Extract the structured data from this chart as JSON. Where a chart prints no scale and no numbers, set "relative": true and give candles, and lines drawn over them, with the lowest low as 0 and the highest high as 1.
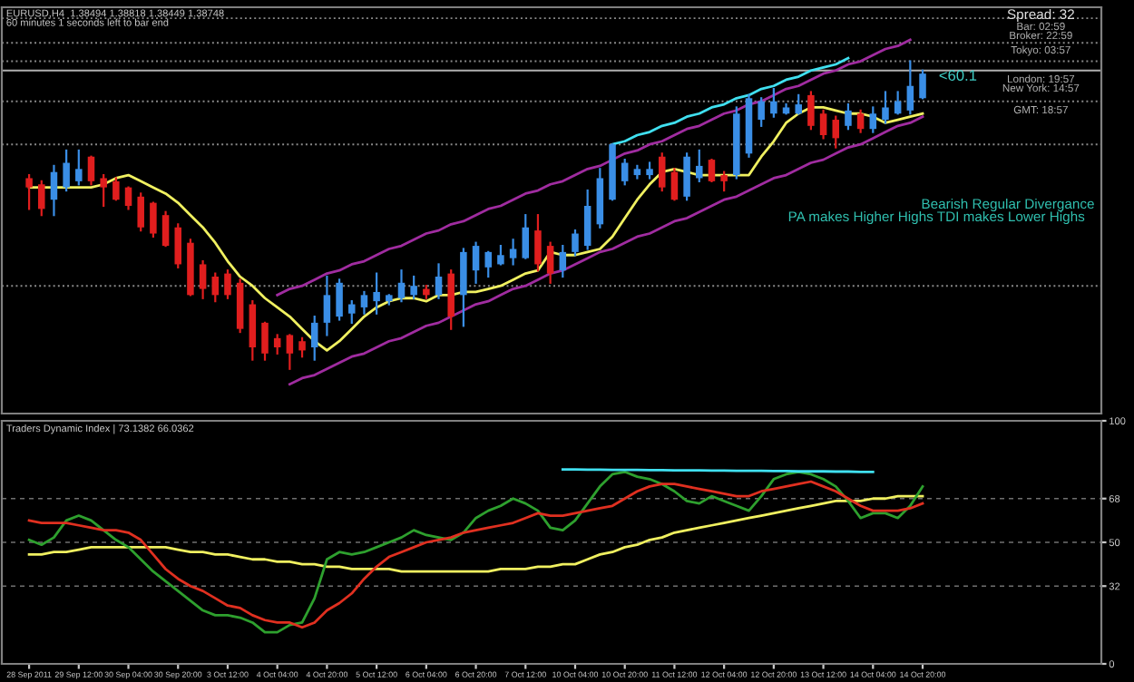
{
  "chart_data": [
    {
      "type": "candlestick",
      "relative": true,
      "title": "EURUSD,H4  1.38494 1.38818 1.38449 1.38748",
      "subtitle": "60 minutes 1 seconds left to bar end",
      "categories": [
        null,
        null,
        null,
        null,
        null,
        null,
        null,
        null,
        null,
        null,
        null,
        null,
        null,
        null,
        null,
        null,
        null,
        null,
        null,
        null,
        null,
        null,
        null,
        null,
        null,
        null,
        null,
        null,
        null,
        null,
        null,
        null,
        null,
        null,
        null,
        null,
        null,
        null,
        null,
        null,
        null,
        null,
        null,
        null,
        null,
        null,
        null,
        null,
        null,
        null,
        null,
        null,
        null,
        null,
        null,
        null,
        null,
        null,
        null,
        null,
        null,
        null,
        null,
        null,
        null,
        null,
        null,
        null,
        null,
        null,
        null,
        null,
        null
      ],
      "ohlc": [
        [
          0.62,
          0.63,
          0.52,
          0.59
        ],
        [
          0.6,
          0.61,
          0.5,
          0.52
        ],
        [
          0.55,
          0.66,
          0.5,
          0.64
        ],
        [
          0.59,
          0.71,
          0.58,
          0.67
        ],
        [
          0.61,
          0.71,
          0.6,
          0.65
        ],
        [
          0.69,
          0.69,
          0.6,
          0.61
        ],
        [
          0.62,
          0.63,
          0.53,
          0.59
        ],
        [
          0.61,
          0.62,
          0.55,
          0.55
        ],
        [
          0.59,
          0.59,
          0.52,
          0.53
        ],
        [
          0.56,
          0.57,
          0.45,
          0.46
        ],
        [
          0.54,
          0.54,
          0.43,
          0.44
        ],
        [
          0.5,
          0.51,
          0.4,
          0.4
        ],
        [
          0.46,
          0.47,
          0.33,
          0.34
        ],
        [
          0.41,
          0.42,
          0.24,
          0.24
        ],
        [
          0.34,
          0.35,
          0.23,
          0.26
        ],
        [
          0.3,
          0.31,
          0.22,
          0.24
        ],
        [
          0.31,
          0.32,
          0.23,
          0.24
        ],
        [
          0.28,
          0.29,
          0.12,
          0.13
        ],
        [
          0.21,
          0.22,
          0.03,
          0.07
        ],
        [
          0.15,
          0.15,
          0.03,
          0.05
        ],
        [
          0.1,
          0.11,
          0.05,
          0.07
        ],
        [
          0.11,
          0.11,
          0,
          0.05
        ],
        [
          0.09,
          0.1,
          0.04,
          0.06
        ],
        [
          0.07,
          0.17,
          0.03,
          0.15
        ],
        [
          0.15,
          0.3,
          0.11,
          0.24
        ],
        [
          0.17,
          0.29,
          0.16,
          0.28
        ],
        [
          0.18,
          0.22,
          0.15,
          0.21
        ],
        [
          0.2,
          0.25,
          0.18,
          0.24
        ],
        [
          0.22,
          0.31,
          0.18,
          0.25
        ],
        [
          0.22,
          0.24,
          0.21,
          0.24
        ],
        [
          0.23,
          0.32,
          0.22,
          0.28
        ],
        [
          0.24,
          0.3,
          0.23,
          0.27
        ],
        [
          0.26,
          0.27,
          0.23,
          0.24
        ],
        [
          0.24,
          0.34,
          0.23,
          0.3
        ],
        [
          0.31,
          0.32,
          0.13,
          0.17
        ],
        [
          0.24,
          0.39,
          0.14,
          0.38
        ],
        [
          0.32,
          0.41,
          0.28,
          0.4
        ],
        [
          0.33,
          0.38,
          0.3,
          0.38
        ],
        [
          0.34,
          0.4,
          0.34,
          0.37
        ],
        [
          0.36,
          0.42,
          0.34,
          0.39
        ],
        [
          0.36,
          0.5,
          0.36,
          0.46
        ],
        [
          0.45,
          0.5,
          0.32,
          0.34
        ],
        [
          0.4,
          0.41,
          0.28,
          0.31
        ],
        [
          0.32,
          0.4,
          0.3,
          0.38
        ],
        [
          0.38,
          0.45,
          0.37,
          0.44
        ],
        [
          0.4,
          0.58,
          0.39,
          0.53
        ],
        [
          0.47,
          0.65,
          0.46,
          0.62
        ],
        [
          0.55,
          0.73,
          0.55,
          0.73
        ],
        [
          0.61,
          0.68,
          0.6,
          0.67
        ],
        [
          0.63,
          0.66,
          0.62,
          0.65
        ],
        [
          0.63,
          0.67,
          0.62,
          0.65
        ],
        [
          0.69,
          0.7,
          0.58,
          0.59
        ],
        [
          0.64,
          0.65,
          0.55,
          0.55
        ],
        [
          0.56,
          0.7,
          0.55,
          0.69
        ],
        [
          0.62,
          0.71,
          0.61,
          0.66
        ],
        [
          0.68,
          0.68,
          0.61,
          0.61
        ],
        [
          0.63,
          0.64,
          0.58,
          0.61
        ],
        [
          0.63,
          0.85,
          0.62,
          0.83
        ],
        [
          0.7,
          0.89,
          0.69,
          0.88
        ],
        [
          0.81,
          0.88,
          0.79,
          0.87
        ],
        [
          0.83,
          0.91,
          0.82,
          0.87
        ],
        [
          0.83,
          0.86,
          0.83,
          0.85
        ],
        [
          0.83,
          0.89,
          0.83,
          0.86
        ],
        [
          0.89,
          0.9,
          0.78,
          0.79
        ],
        [
          0.83,
          0.84,
          0.75,
          0.76
        ],
        [
          0.81,
          0.82,
          0.72,
          0.75
        ],
        [
          0.79,
          0.86,
          0.78,
          0.84
        ],
        [
          0.83,
          0.84,
          0.77,
          0.78
        ],
        [
          0.78,
          0.85,
          0.77,
          0.83
        ],
        [
          0.81,
          0.9,
          0.8,
          0.85
        ],
        [
          0.83,
          0.9,
          0.83,
          0.87
        ],
        [
          0.84,
          1.0,
          0.83,
          0.92
        ],
        [
          0.88,
          0.97,
          0.88,
          0.96
        ]
      ],
      "colors": [
        "#e01e1e",
        "#e01e1e",
        "#3a8ee6",
        "#3a8ee6",
        "#3a8ee6",
        "#e01e1e",
        "#e01e1e",
        "#e01e1e",
        "#e01e1e",
        "#e01e1e",
        "#e01e1e",
        "#e01e1e",
        "#e01e1e",
        "#e01e1e",
        "#e01e1e",
        "#e01e1e",
        "#e01e1e",
        "#e01e1e",
        "#e01e1e",
        "#e01e1e",
        "#e01e1e",
        "#e01e1e",
        "#e01e1e",
        "#3a8ee6",
        "#3a8ee6",
        "#3a8ee6",
        "#3a8ee6",
        "#3a8ee6",
        "#3a8ee6",
        "#3a8ee6",
        "#3a8ee6",
        "#3a8ee6",
        "#e01e1e",
        "#3a8ee6",
        "#e01e1e",
        "#3a8ee6",
        "#3a8ee6",
        "#3a8ee6",
        "#3a8ee6",
        "#3a8ee6",
        "#3a8ee6",
        "#e01e1e",
        "#e01e1e",
        "#3a8ee6",
        "#3a8ee6",
        "#3a8ee6",
        "#3a8ee6",
        "#3a8ee6",
        "#3a8ee6",
        "#3a8ee6",
        "#3a8ee6",
        "#e01e1e",
        "#e01e1e",
        "#3a8ee6",
        "#3a8ee6",
        "#e01e1e",
        "#e01e1e",
        "#3a8ee6",
        "#3a8ee6",
        "#3a8ee6",
        "#3a8ee6",
        "#3a8ee6",
        "#3a8ee6",
        "#e01e1e",
        "#e01e1e",
        "#e01e1e",
        "#3a8ee6",
        "#e01e1e",
        "#3a8ee6",
        "#3a8ee6",
        "#3a8ee6",
        "#3a8ee6",
        "#3a8ee6"
      ],
      "series": [
        {
          "type": "line",
          "color": "#f0f060",
          "values": [
            0.59,
            0.59,
            0.59,
            0.59,
            0.59,
            0.59,
            0.6,
            0.62,
            0.63,
            0.61,
            0.59,
            0.57,
            0.54,
            0.5,
            0.46,
            0.41,
            0.35,
            0.3,
            0.27,
            0.23,
            0.2,
            0.17,
            0.13,
            0.09,
            0.06,
            0.09,
            0.13,
            0.17,
            0.2,
            0.22,
            0.23,
            0.23,
            0.22,
            0.24,
            0.24,
            0.25,
            0.25,
            0.26,
            0.27,
            0.29,
            0.31,
            0.32,
            0.38,
            0.37,
            0.37,
            0.38,
            0.39,
            0.43,
            0.49,
            0.55,
            0.6,
            0.64,
            0.65,
            0.64,
            0.63,
            0.63,
            0.63,
            0.63,
            0.63,
            0.69,
            0.74,
            0.8,
            0.83,
            0.85,
            0.85,
            0.84,
            0.83,
            0.83,
            0.82,
            0.8,
            0.81,
            0.82,
            0.83
          ]
        },
        {
          "type": "line",
          "color": "#a02ca0",
          "values": [
            null,
            null,
            null,
            null,
            null,
            null,
            null,
            null,
            null,
            null,
            null,
            null,
            null,
            null,
            null,
            null,
            null,
            null,
            null,
            null,
            0.24,
            0.26,
            0.27,
            0.29,
            0.31,
            0.32,
            0.34,
            0.35,
            0.37,
            0.39,
            0.4,
            0.42,
            0.44,
            0.45,
            0.47,
            0.48,
            0.5,
            0.52,
            0.53,
            0.55,
            0.57,
            0.58,
            0.6,
            0.61,
            0.63,
            0.65,
            0.66,
            0.68,
            0.7,
            0.71,
            0.73,
            0.74,
            0.76,
            0.78,
            0.79,
            0.81,
            0.83,
            0.84,
            0.86,
            0.87,
            0.89,
            0.91,
            0.92,
            0.94,
            0.96,
            0.97,
            0.99,
            1.0,
            1.02,
            1.04,
            1.05,
            1.07,
            null
          ]
        },
        {
          "type": "line",
          "color": "#a02ca0",
          "values": [
            null,
            null,
            null,
            null,
            null,
            null,
            null,
            null,
            null,
            null,
            null,
            null,
            null,
            null,
            null,
            null,
            null,
            null,
            null,
            null,
            null,
            -0.05,
            -0.03,
            -0.02,
            0,
            0.02,
            0.04,
            0.05,
            0.07,
            0.09,
            0.1,
            0.12,
            0.14,
            0.15,
            0.17,
            0.19,
            0.21,
            0.22,
            0.24,
            0.26,
            0.27,
            0.29,
            0.31,
            0.32,
            0.34,
            0.36,
            0.38,
            0.39,
            0.41,
            0.43,
            0.44,
            0.46,
            0.48,
            0.49,
            0.51,
            0.53,
            0.55,
            0.56,
            0.58,
            0.6,
            0.62,
            0.63,
            0.65,
            0.67,
            0.68,
            0.7,
            0.72,
            0.73,
            0.75,
            0.77,
            0.79,
            0.8,
            0.82
          ]
        },
        {
          "type": "line",
          "color": "#40e0f0",
          "values": [
            null,
            null,
            null,
            null,
            null,
            null,
            null,
            null,
            null,
            null,
            null,
            null,
            null,
            null,
            null,
            null,
            null,
            null,
            null,
            null,
            null,
            null,
            null,
            null,
            null,
            null,
            null,
            null,
            null,
            null,
            null,
            null,
            null,
            null,
            null,
            null,
            null,
            null,
            null,
            null,
            null,
            null,
            null,
            null,
            null,
            null,
            null,
            0.73,
            0.74,
            0.76,
            0.77,
            0.79,
            0.8,
            0.82,
            0.83,
            0.85,
            0.86,
            0.88,
            0.89,
            0.91,
            0.92,
            0.94,
            0.95,
            0.97,
            0.98,
            0.99,
            1.01,
            null,
            null,
            null,
            null,
            null,
            null
          ]
        }
      ],
      "ref_lines": [
        {
          "axis": "y",
          "value": 1.14,
          "color": "#8a8a8a",
          "line_style": "dotted"
        },
        {
          "axis": "y",
          "value": 1.06,
          "color": "#8a8a8a",
          "line_style": "dotted"
        },
        {
          "axis": "y",
          "value": 1.0,
          "color": "#8a8a8a",
          "line_style": "dotted"
        },
        {
          "axis": "y",
          "value": 0.97,
          "color": "#b0b0b0",
          "line_style": "solid"
        },
        {
          "axis": "y",
          "value": 0.87,
          "color": "#8a8a8a",
          "line_style": "dotted"
        },
        {
          "axis": "y",
          "value": 0.73,
          "color": "#8a8a8a",
          "line_style": "dotted"
        },
        {
          "axis": "y",
          "value": 0.27,
          "color": "#8a8a8a",
          "line_style": "dotted"
        }
      ],
      "annotations": [
        "Spread: 32",
        "Bar: 02:59",
        "Broker: 22:59",
        "Tokyo: 03:57",
        "London: 19:57",
        "New York: 14:57",
        "GMT: 18:57",
        "<60.1",
        "Bearish Regular Divergance",
        "PA makes Higher Highs TDI makes Lower Highs"
      ]
    },
    {
      "type": "line",
      "title": "Traders Dynamic Index | 73.1382 66.0362",
      "categories": [
        "28 Sep 2011",
        null,
        null,
        null,
        "29 Sep 12:00",
        null,
        null,
        null,
        "30 Sep 04:00",
        null,
        null,
        null,
        "30 Sep 20:00",
        null,
        null,
        null,
        "3 Oct 12:00",
        null,
        null,
        null,
        "4 Oct 04:00",
        null,
        null,
        null,
        "4 Oct 20:00",
        null,
        null,
        null,
        "5 Oct 12:00",
        null,
        null,
        null,
        "6 Oct 04:00",
        null,
        null,
        null,
        "6 Oct 20:00",
        null,
        null,
        null,
        "7 Oct 12:00",
        null,
        null,
        null,
        "10 Oct 04:00",
        null,
        null,
        null,
        "10 Oct 20:00",
        null,
        null,
        null,
        "11 Oct 12:00",
        null,
        null,
        null,
        "12 Oct 04:00",
        null,
        null,
        null,
        "12 Oct 20:00",
        null,
        null,
        null,
        "13 Oct 12:00",
        null,
        null,
        null,
        "14 Oct 04:00",
        null,
        null,
        null,
        "14 Oct 20:00"
      ],
      "ylim": [
        0,
        100
      ],
      "yticks": [
        0,
        32,
        50,
        68,
        100
      ],
      "grid": "y",
      "series": [
        {
          "color": "#f0f060",
          "values": [
            45,
            45,
            46,
            46,
            47,
            48,
            48,
            48,
            48,
            48,
            48,
            48,
            47,
            46,
            46,
            45,
            45,
            44,
            43,
            43,
            42,
            42,
            41,
            41,
            40,
            40,
            39,
            39,
            39,
            39,
            38,
            38,
            38,
            38,
            38,
            38,
            38,
            38,
            39,
            39,
            39,
            40,
            40,
            41,
            41,
            43,
            45,
            46,
            48,
            49,
            51,
            52,
            54,
            55,
            56,
            57,
            58,
            59,
            60,
            61,
            62,
            63,
            64,
            65,
            66,
            67,
            67,
            67,
            68,
            68,
            69,
            69,
            69
          ]
        },
        {
          "color": "#2ea02e",
          "values": [
            51,
            49,
            52,
            59,
            61,
            59,
            55,
            51,
            48,
            43,
            38,
            34,
            30,
            26,
            22,
            20,
            20,
            19,
            17,
            13,
            13,
            16,
            17,
            27,
            43,
            46,
            45,
            46,
            48,
            50,
            52,
            55,
            53,
            52,
            51,
            54,
            60,
            63,
            65,
            68,
            66,
            63,
            56,
            55,
            59,
            66,
            73,
            78,
            79,
            77,
            76,
            74,
            71,
            67,
            66,
            69,
            67,
            65,
            63,
            69,
            76,
            78,
            79,
            78,
            76,
            73,
            67,
            60,
            62,
            62,
            60,
            65,
            73
          ]
        },
        {
          "color": "#e03020",
          "values": [
            59,
            58,
            58,
            58,
            57,
            56,
            55,
            55,
            54,
            51,
            45,
            39,
            35,
            32,
            30,
            27,
            24,
            23,
            20,
            18,
            17,
            17,
            15,
            17,
            22,
            25,
            29,
            35,
            40,
            44,
            46,
            48,
            50,
            51,
            52,
            54,
            55,
            56,
            57,
            58,
            60,
            62,
            61,
            61,
            62,
            63,
            64,
            65,
            68,
            71,
            73,
            74,
            74,
            73,
            72,
            71,
            70,
            69,
            69,
            71,
            72,
            73,
            74,
            75,
            73,
            71,
            68,
            65,
            63,
            63,
            63,
            64,
            66
          ]
        },
        {
          "color": "#40e0f0",
          "values": [
            null,
            null,
            null,
            null,
            null,
            null,
            null,
            null,
            null,
            null,
            null,
            null,
            null,
            null,
            null,
            null,
            null,
            null,
            null,
            null,
            null,
            null,
            null,
            null,
            null,
            null,
            null,
            null,
            null,
            null,
            null,
            null,
            null,
            null,
            null,
            null,
            null,
            null,
            null,
            null,
            null,
            null,
            null,
            80.0,
            80.0,
            79.9,
            79.9,
            79.8,
            79.8,
            79.8,
            79.7,
            79.7,
            79.6,
            79.6,
            79.6,
            79.5,
            79.5,
            79.4,
            79.4,
            79.4,
            79.3,
            79.3,
            79.2,
            79.2,
            79.2,
            79.1,
            79.1,
            79.0,
            79.0,
            null,
            null,
            null,
            null
          ]
        }
      ]
    }
  ]
}
